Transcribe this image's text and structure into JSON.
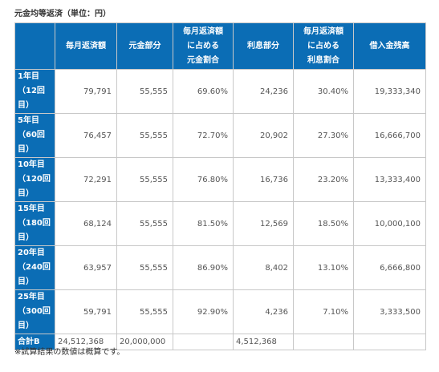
{
  "title": "元金均等返済（単位：円）",
  "table": {
    "header": [
      "毎月返済額",
      "元金部分",
      [
        "毎月返済額",
        "に占める",
        "元金割合"
      ],
      "利息部分",
      [
        "毎月返済額",
        "に占める",
        "利息割合"
      ],
      "借入金残高"
    ],
    "rows": [
      {
        "label": [
          "1年目",
          "（12回",
          "目）"
        ],
        "cells": [
          "79,791",
          "55,555",
          "69.60%",
          "24,236",
          "30.40%",
          "19,333,340"
        ]
      },
      {
        "label": [
          "5年目",
          "（60回",
          "目）"
        ],
        "cells": [
          "76,457",
          "55,555",
          "72.70%",
          "20,902",
          "27.30%",
          "16,666,700"
        ]
      },
      {
        "label": [
          "10年目",
          "（120回",
          "目）"
        ],
        "cells": [
          "72,291",
          "55,555",
          "76.80%",
          "16,736",
          "23.20%",
          "13,333,400"
        ]
      },
      {
        "label": [
          "15年目",
          "（180回",
          "目）"
        ],
        "cells": [
          "68,124",
          "55,555",
          "81.50%",
          "12,569",
          "18.50%",
          "10,000,100"
        ]
      },
      {
        "label": [
          "20年目",
          "（240回",
          "目）"
        ],
        "cells": [
          "63,957",
          "55,555",
          "86.90%",
          "8,402",
          "13.10%",
          "6,666,800"
        ]
      },
      {
        "label": [
          "25年目",
          "（300回",
          "目）"
        ],
        "cells": [
          "59,791",
          "55,555",
          "92.90%",
          "4,236",
          "7.10%",
          "3,333,500"
        ]
      }
    ],
    "total": {
      "label": "合計B",
      "cells": [
        "24,512,368",
        "20,000,000",
        null,
        "4,512,368",
        null,
        null
      ]
    }
  },
  "note": "※試算結果の数値は概算です。"
}
